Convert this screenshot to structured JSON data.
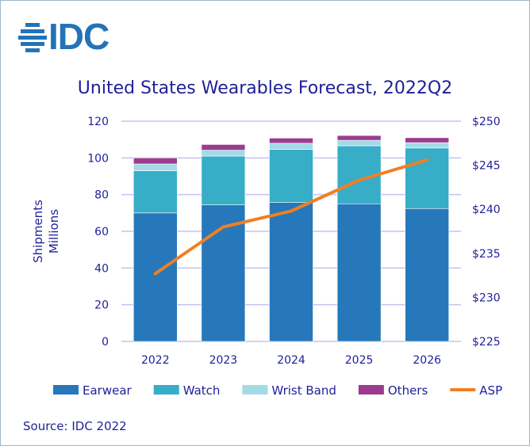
{
  "logo": {
    "text": "IDC"
  },
  "source": "Source: IDC 2022",
  "chart_data": {
    "type": "bar",
    "stacked": true,
    "title": "United States Wearables Forecast, 2022Q2",
    "ylabel": "Shipments Millions",
    "ylabel_lines": [
      "Shipments",
      "Millions"
    ],
    "y2label": "",
    "categories": [
      "2022",
      "2023",
      "2024",
      "2025",
      "2026"
    ],
    "ylim": [
      0,
      120
    ],
    "yticks": [
      "0",
      "20",
      "40",
      "60",
      "80",
      "100",
      "120"
    ],
    "y2lim": [
      225,
      250
    ],
    "y2ticks": [
      "$225",
      "$230",
      "$235",
      "$240",
      "$245",
      "$250"
    ],
    "grid": true,
    "legend": "bottom",
    "series": [
      {
        "name": "Earwear",
        "type": "bar",
        "color": "#2678bb",
        "values": [
          70,
          74.4,
          75.7,
          75,
          72.4
        ]
      },
      {
        "name": "Watch",
        "type": "bar",
        "color": "#37adc8",
        "values": [
          23,
          26.6,
          28.9,
          31.6,
          33
        ]
      },
      {
        "name": "Wrist Band",
        "type": "bar",
        "color": "#a2dbe6",
        "values": [
          3.7,
          3.2,
          3.4,
          3,
          2.9
        ]
      },
      {
        "name": "Others",
        "type": "bar",
        "color": "#9b3c8e",
        "values": [
          3.3,
          3.1,
          2.8,
          2.6,
          2.7
        ]
      },
      {
        "name": "ASP",
        "type": "line",
        "axis": "right",
        "color": "#f07f23",
        "values": [
          232.7,
          238,
          239.8,
          243.3,
          245.6
        ]
      }
    ]
  }
}
